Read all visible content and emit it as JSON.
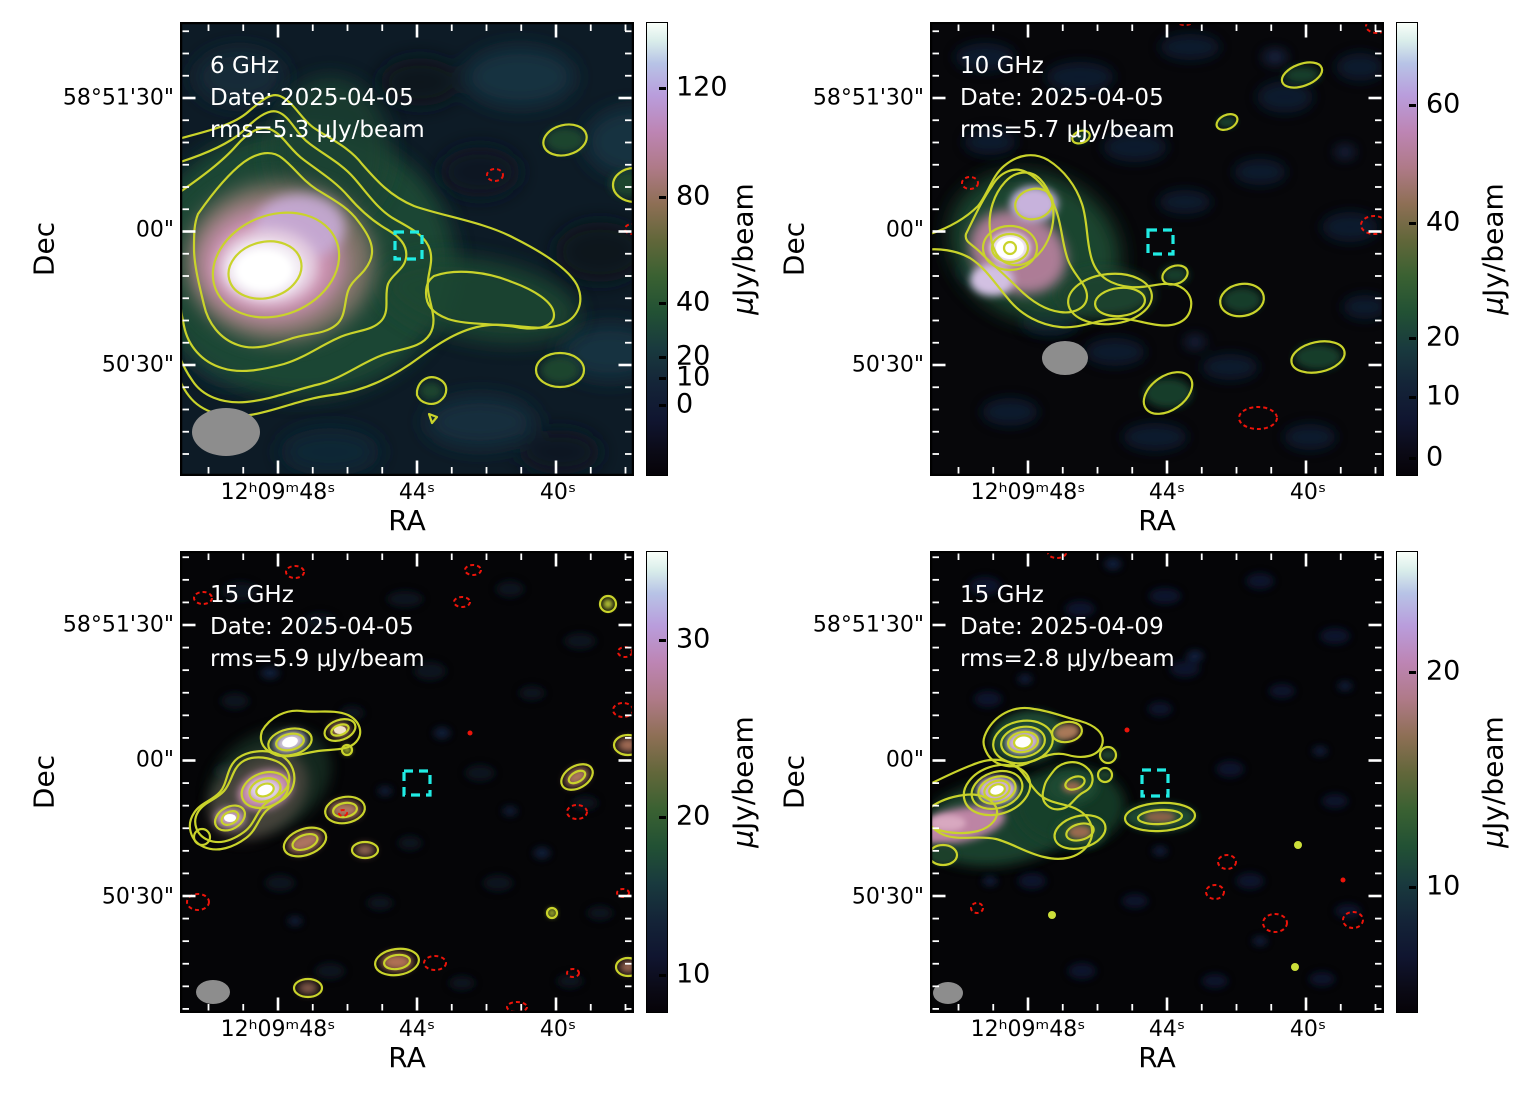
{
  "figure": {
    "xlabel": "RA",
    "ylabel": "Dec",
    "x_tick_labels": [
      "12ʰ09ᵐ48ˢ",
      "44ˢ",
      "40ˢ"
    ],
    "y_tick_labels": [
      "58°51'30\"",
      "00\"",
      "50'30\""
    ],
    "colorbar_unit_mu": "μ",
    "colorbar_unit_rest": "Jy/beam"
  },
  "colors": {
    "positive_contour": "#c9d32b",
    "negative_contour": "#ec140a",
    "target_marker": "#20ece4",
    "beam": "#8d8d8d",
    "annotation_text": "#ffffff",
    "axis_text": "#000000",
    "figure_background": "#ffffff"
  },
  "panels": [
    {
      "freq": "6 GHz",
      "date": "Date: 2025-04-05",
      "rms": "rms=5.3 μJy/beam",
      "colorbar_ticks": [
        "120",
        "80",
        "40",
        "20",
        "10",
        "0"
      ]
    },
    {
      "freq": "10 GHz",
      "date": "Date: 2025-04-05",
      "rms": "rms=5.7 μJy/beam",
      "colorbar_ticks": [
        "60",
        "40",
        "20",
        "10",
        "0"
      ]
    },
    {
      "freq": "15 GHz",
      "date": "Date: 2025-04-05",
      "rms": "rms=5.9 μJy/beam",
      "colorbar_ticks": [
        "30",
        "20",
        "10"
      ]
    },
    {
      "freq": "15 GHz",
      "date": "Date: 2025-04-09",
      "rms": "rms=2.8 μJy/beam",
      "colorbar_ticks": [
        "20",
        "10"
      ]
    }
  ],
  "chart_data": [
    {
      "type": "heatmap",
      "panel": "top-left",
      "frequency": "6 GHz",
      "obs_date": "2025-04-05",
      "rms": "5.3 μJy/beam",
      "colorbar_label": "μJy/beam",
      "colorbar_ticks": [
        120,
        80,
        40,
        20,
        10,
        0
      ],
      "xlabel": "RA",
      "ylabel": "Dec",
      "x_tick_labels": [
        "12h09m48s",
        "44s",
        "40s"
      ],
      "y_tick_labels": [
        "58°51'30\"",
        "00\"",
        "50'30\""
      ],
      "description": "Bright extended radio source east of center with ~7 nested yellow positive contours and a diffuse tail to the southwest; cyan dashed square marker near field center; small red dashed negative contours; gray beam ellipse at lower left."
    },
    {
      "type": "heatmap",
      "panel": "top-right",
      "frequency": "10 GHz",
      "obs_date": "2025-04-05",
      "rms": "5.7 μJy/beam",
      "colorbar_label": "μJy/beam",
      "colorbar_ticks": [
        60,
        40,
        20,
        10,
        0
      ],
      "xlabel": "RA",
      "ylabel": "Dec",
      "x_tick_labels": [
        "12h09m48s",
        "44s",
        "40s"
      ],
      "y_tick_labels": [
        "58°51'30\"",
        "00\"",
        "50'30\""
      ],
      "description": "Compact elongated source with nested contours left of center and a short tail; scattered small yellow positive and red dashed negative contours; cyan dashed square marker; gray beam ellipse."
    },
    {
      "type": "heatmap",
      "panel": "bottom-left",
      "frequency": "15 GHz",
      "obs_date": "2025-04-05",
      "rms": "5.9 μJy/beam",
      "colorbar_label": "μJy/beam",
      "colorbar_ticks": [
        30,
        20,
        10
      ],
      "xlabel": "RA",
      "ylabel": "Dec",
      "x_tick_labels": [
        "12h09m48s",
        "44s",
        "40s"
      ],
      "y_tick_labels": [
        "58°51'30\"",
        "00\"",
        "50'30\""
      ],
      "description": "Chain of compact bright knots with concentric contours in the upper left; many faint point-like blobs and red dashed negative contours across the field; cyan dashed square marker; small gray beam ellipse."
    },
    {
      "type": "heatmap",
      "panel": "bottom-right",
      "frequency": "15 GHz",
      "obs_date": "2025-04-09",
      "rms": "2.8 μJy/beam",
      "colorbar_label": "μJy/beam",
      "colorbar_ticks": [
        20,
        10
      ],
      "xlabel": "RA",
      "ylabel": "Dec",
      "x_tick_labels": [
        "12h09m48s",
        "44s",
        "40s"
      ],
      "y_tick_labels": [
        "58°51'30\"",
        "00\"",
        "50'30\""
      ],
      "description": "Two bright compact knots with many concentric contours plus an extended filament to the lower left; scattered red dashed negative contours; cyan dashed square marker; small gray beam ellipse."
    }
  ]
}
